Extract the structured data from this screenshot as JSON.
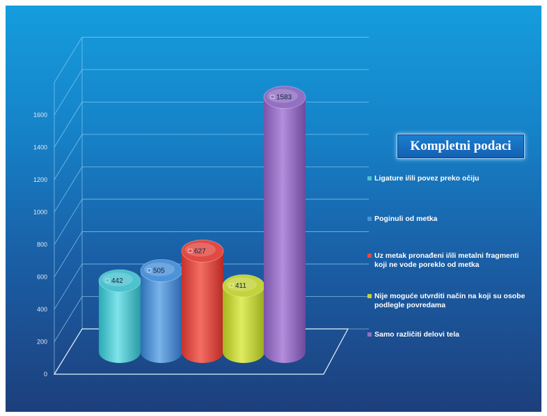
{
  "chart_data": {
    "type": "bar",
    "title": "Kompletni podaci",
    "categories": [
      "Ligature i/ili povez preko očiju",
      "Poginuli od metka",
      "Uz metak pronađeni i/ili metalni fragmenti koji ne vode poreklo od metka",
      "Nije moguće utvrditi način na koji su osobe podlegle povredama",
      "Samo različiti delovi tela"
    ],
    "values": [
      442,
      505,
      627,
      411,
      1583
    ],
    "data_labels": [
      "442",
      "505",
      "627",
      "411",
      "1583"
    ],
    "legend": [
      "Ligature i/ili povez preko očiju",
      "Poginuli od metka",
      "Uz metak pronađeni i/ili metalni fragmenti koji ne vode poreklo od metka",
      "Nije moguće utvrditi način na koji su osobe podlegle povredama",
      "Samo različiti delovi tela"
    ],
    "colors": [
      "#4cc3cf",
      "#4d93d9",
      "#e14a43",
      "#c4d23c",
      "#9270c2"
    ],
    "ylim": [
      0,
      1800
    ],
    "yticks": [
      "0",
      "200",
      "400",
      "600",
      "800",
      "1000",
      "1200",
      "1400",
      "1600"
    ],
    "grid": true,
    "legend_position": "right",
    "style": "3d-cylinder"
  }
}
